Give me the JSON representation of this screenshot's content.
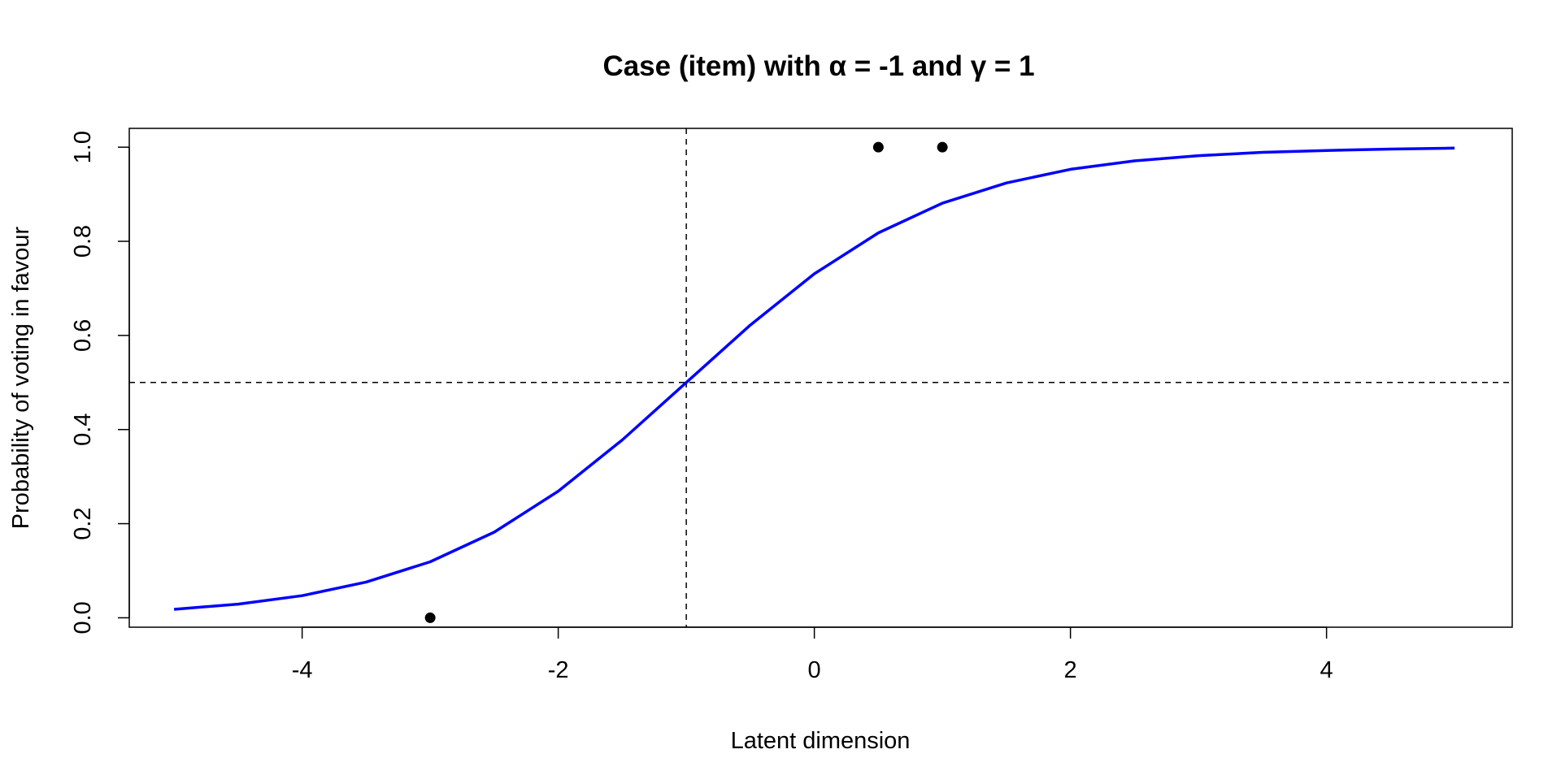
{
  "chart_data": {
    "type": "line",
    "title": "Case (item) with α = -1 and γ = 1",
    "xlabel": "Latent dimension",
    "ylabel": "Probability of voting in favour",
    "xlim": [
      -5.35,
      5.45
    ],
    "ylim": [
      -0.02,
      1.04
    ],
    "x_ticks": [
      -4,
      -2,
      0,
      2,
      4
    ],
    "x_tick_labels": [
      "-4",
      "-2",
      "0",
      "2",
      "4"
    ],
    "y_ticks": [
      0,
      0.2,
      0.4,
      0.6,
      0.8,
      1
    ],
    "y_tick_labels": [
      "0.0",
      "0.2",
      "0.4",
      "0.6",
      "0.8",
      "1.0"
    ],
    "grid": false,
    "series": [
      {
        "kind": "line",
        "color": "#0000ff",
        "x": [
          -5,
          -4.5,
          -4,
          -3.5,
          -3,
          -2.5,
          -2,
          -1.5,
          -1,
          -0.5,
          0,
          0.5,
          1,
          1.5,
          2,
          2.5,
          3,
          3.5,
          4,
          4.5,
          5
        ],
        "y": [
          0.018,
          0.029,
          0.047,
          0.076,
          0.119,
          0.182,
          0.269,
          0.378,
          0.5,
          0.622,
          0.731,
          0.818,
          0.881,
          0.924,
          0.953,
          0.971,
          0.982,
          0.989,
          0.993,
          0.996,
          0.998
        ]
      },
      {
        "kind": "points",
        "color": "#000000",
        "x": [
          -3,
          0.5,
          1
        ],
        "y": [
          0,
          1,
          1
        ]
      }
    ],
    "reference_lines": [
      {
        "orientation": "vertical",
        "value": -1,
        "style": "dashed",
        "color": "#000000"
      },
      {
        "orientation": "horizontal",
        "value": 0.5,
        "style": "dashed",
        "color": "#000000"
      }
    ]
  }
}
